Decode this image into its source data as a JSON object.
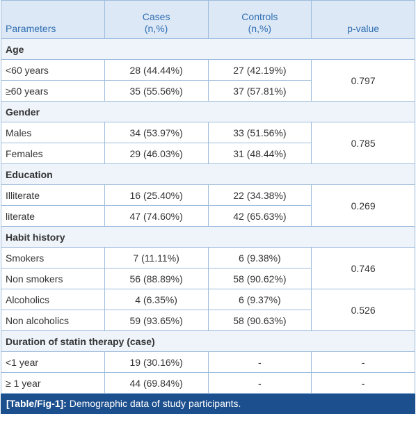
{
  "table": {
    "headers": [
      "Parameters",
      "Cases\n(n,%)",
      "Controls\n(n,%)",
      "p-value"
    ],
    "sections": [
      {
        "title": "Age",
        "rows": [
          [
            "<60 years",
            "28 (44.44%)",
            "27 (42.19%)"
          ],
          [
            "≥60 years",
            "35 (55.56%)",
            "37 (57.81%)"
          ]
        ],
        "p_values": [
          "0.797"
        ]
      },
      {
        "title": "Gender",
        "rows": [
          [
            "Males",
            "34 (53.97%)",
            "33 (51.56%)"
          ],
          [
            "Females",
            "29 (46.03%)",
            "31 (48.44%)"
          ]
        ],
        "p_values": [
          "0.785"
        ]
      },
      {
        "title": "Education",
        "rows": [
          [
            "Illiterate",
            "16 (25.40%)",
            "22 (34.38%)"
          ],
          [
            "literate",
            "47 (74.60%)",
            "42 (65.63%)"
          ]
        ],
        "p_values": [
          "0.269"
        ]
      },
      {
        "title": "Habit history",
        "rows": [
          [
            "Smokers",
            "7 (11.11%)",
            "6 (9.38%)"
          ],
          [
            "Non smokers",
            "56 (88.89%)",
            "58 (90.62%)"
          ],
          [
            "Alcoholics",
            "4 (6.35%)",
            "6 (9.37%)"
          ],
          [
            "Non alcoholics",
            "59 (93.65%)",
            "58 (90.63%)"
          ]
        ],
        "p_values": [
          "0.746",
          "0.526"
        ]
      },
      {
        "title": "Duration of statin therapy (case)",
        "rows": [
          [
            "<1 year",
            "19 (30.16%)",
            "-"
          ],
          [
            "≥ 1 year",
            "44 (69.84%)",
            "-"
          ]
        ],
        "p_values": [
          "-",
          "-"
        ]
      }
    ],
    "caption": {
      "label": "[Table/Fig-1]:",
      "text": "Demographic data of study participants."
    }
  }
}
